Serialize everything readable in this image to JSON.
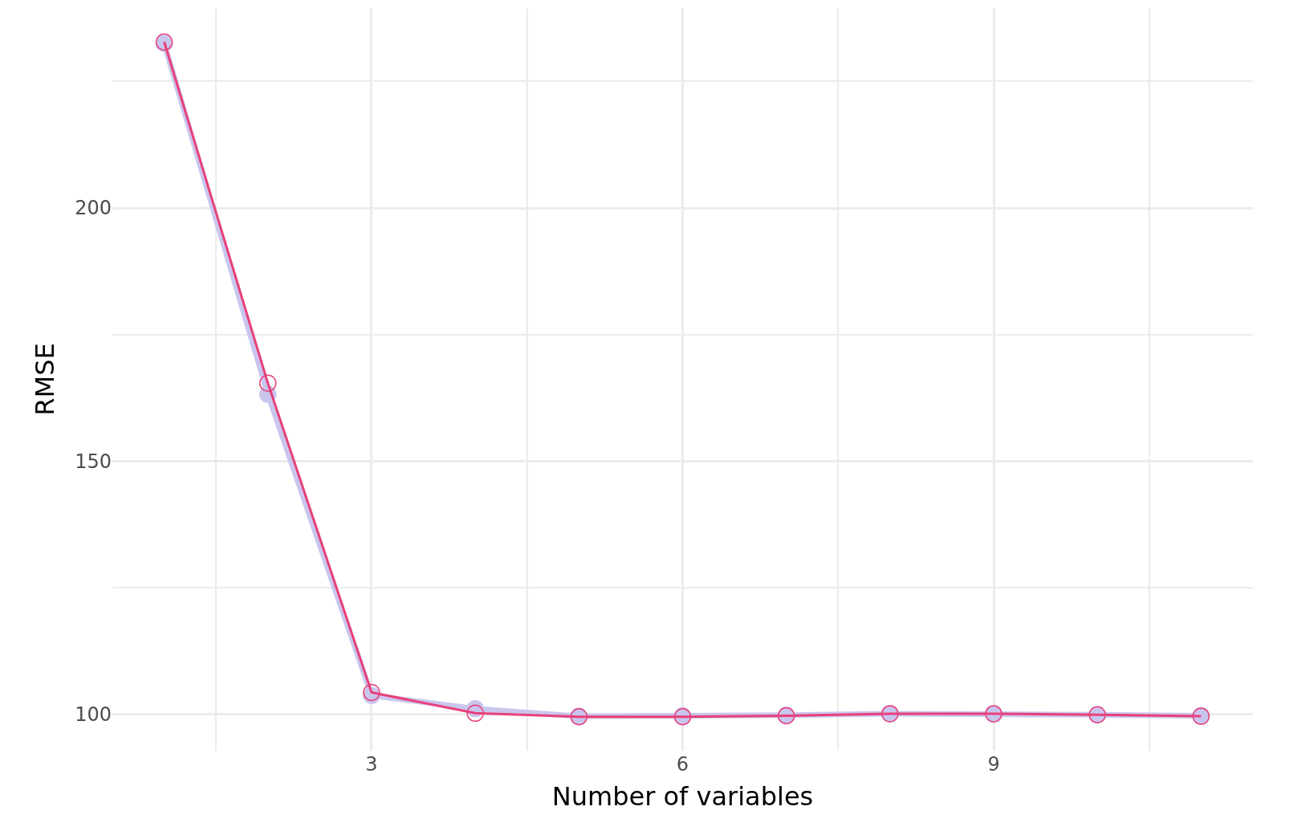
{
  "chart_data": {
    "type": "line",
    "xlabel": "Number of variables",
    "ylabel": "RMSE",
    "x": [
      1,
      2,
      3,
      4,
      5,
      6,
      7,
      8,
      9,
      10,
      11
    ],
    "series": [
      {
        "color": "#c9c6ee",
        "marker": "circle",
        "values": [
          232.5,
          163.2,
          103.7,
          101.1,
          99.6,
          99.7,
          99.8,
          100.1,
          100.0,
          99.9,
          99.7
        ]
      },
      {
        "color": "#e8407a",
        "marker": "circle-open",
        "values": [
          232.8,
          165.4,
          104.3,
          100.2,
          99.5,
          99.5,
          99.7,
          100.1,
          100.1,
          99.9,
          99.6
        ]
      }
    ],
    "xlim": [
      0.5,
      11.5
    ],
    "ylim": [
      92.8,
      239.5
    ],
    "xticks": [
      {
        "value": 1.5,
        "label": null
      },
      3,
      {
        "value": 4.5,
        "label": null
      },
      6,
      {
        "value": 7.5,
        "label": null
      },
      9,
      {
        "value": 10.5,
        "label": null
      }
    ],
    "yticks": [
      100,
      {
        "value": 125,
        "label": null
      },
      150,
      {
        "value": 175,
        "label": null
      },
      200,
      {
        "value": 225,
        "label": null
      }
    ],
    "grid": true,
    "legend": false
  }
}
